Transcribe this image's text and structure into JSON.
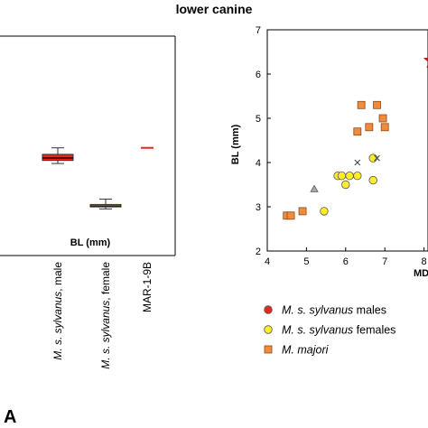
{
  "figure": {
    "title": "lower canine",
    "panel_label": "A"
  },
  "chart_data": [
    {
      "type": "box",
      "ylabel": "BL (mm)",
      "categories": [
        {
          "label_html": "<tspan font-style='italic'>M. s. sylvanus</tspan>, male",
          "label": "M. s. sylvanus, male"
        },
        {
          "label_html": "<tspan font-style='italic'>M. s. sylvanus</tspan>, female",
          "label": "M. s. sylvanus, female"
        },
        {
          "label_html": "MAR-1-9B",
          "label": "MAR-1-9B"
        }
      ],
      "boxes": [
        {
          "category": "M. s. sylvanus, male",
          "color": "#e8251e",
          "whisker_low": 5.85,
          "q1": 6.0,
          "median": 6.12,
          "q3": 6.3,
          "whisker_high": 6.62
        },
        {
          "category": "M. s. sylvanus, female",
          "color": "#ffed29",
          "whisker_low": 3.62,
          "q1": 3.72,
          "median": 3.77,
          "q3": 3.84,
          "whisker_high": 4.1
        }
      ],
      "point_marks": [
        {
          "category": "MAR-1-9B",
          "value": 6.62,
          "color": "#e8251e",
          "marker": "dash"
        }
      ]
    },
    {
      "type": "scatter",
      "xlabel": "MD",
      "ylabel": "BL (mm)",
      "xlim": [
        4,
        8.4
      ],
      "ylim": [
        2,
        7
      ],
      "xticks": [
        4,
        5,
        6,
        7,
        8
      ],
      "yticks": [
        2,
        3,
        4,
        5,
        6,
        7
      ],
      "series": [
        {
          "name": "M. s. sylvanus males",
          "name_italic": "M. s. sylvanus",
          "name_rest": " males",
          "marker": "circle",
          "color": "#e8251e",
          "points": []
        },
        {
          "name": "M. s. sylvanus females",
          "name_italic": "M. s. sylvanus",
          "name_rest": " females",
          "marker": "circle",
          "color": "#ffed29",
          "points": [
            [
              5.8,
              3.7
            ],
            [
              5.9,
              3.7
            ],
            [
              6.0,
              3.5
            ],
            [
              6.1,
              3.7
            ],
            [
              6.3,
              3.7
            ],
            [
              6.7,
              4.1
            ],
            [
              6.7,
              3.6
            ],
            [
              5.45,
              2.9
            ]
          ]
        },
        {
          "name": "M. majori",
          "name_italic": "M. majori",
          "name_rest": "",
          "marker": "square",
          "color": "#f08c3c",
          "points": [
            [
              4.5,
              2.8
            ],
            [
              4.6,
              2.8
            ],
            [
              4.9,
              2.9
            ],
            [
              6.3,
              4.7
            ],
            [
              6.4,
              5.3
            ],
            [
              6.6,
              4.8
            ],
            [
              6.8,
              5.3
            ],
            [
              6.95,
              5.0
            ],
            [
              7.0,
              4.8
            ]
          ]
        },
        {
          "name": "",
          "marker": "x",
          "color": "#444444",
          "points": [
            [
              6.3,
              4.0
            ],
            [
              6.8,
              4.1
            ]
          ]
        },
        {
          "name": "",
          "marker": "triangle",
          "color": "#aaaaaa",
          "points": [
            [
              5.2,
              3.4
            ]
          ]
        },
        {
          "name": "MAR-1-9B",
          "marker": "star",
          "color": "#e8251e",
          "points": [
            [
              8.2,
              6.3
            ]
          ]
        }
      ],
      "legend": {
        "placement": "below",
        "entries": [
          {
            "name_italic": "M. s. sylvanus",
            "name_rest": " males",
            "marker": "circle",
            "color": "#e8251e"
          },
          {
            "name_italic": "M. s. sylvanus",
            "name_rest": " females",
            "marker": "circle",
            "color": "#ffed29"
          },
          {
            "name_italic": "M. majori",
            "name_rest": "",
            "marker": "square",
            "color": "#f08c3c"
          }
        ]
      }
    }
  ]
}
